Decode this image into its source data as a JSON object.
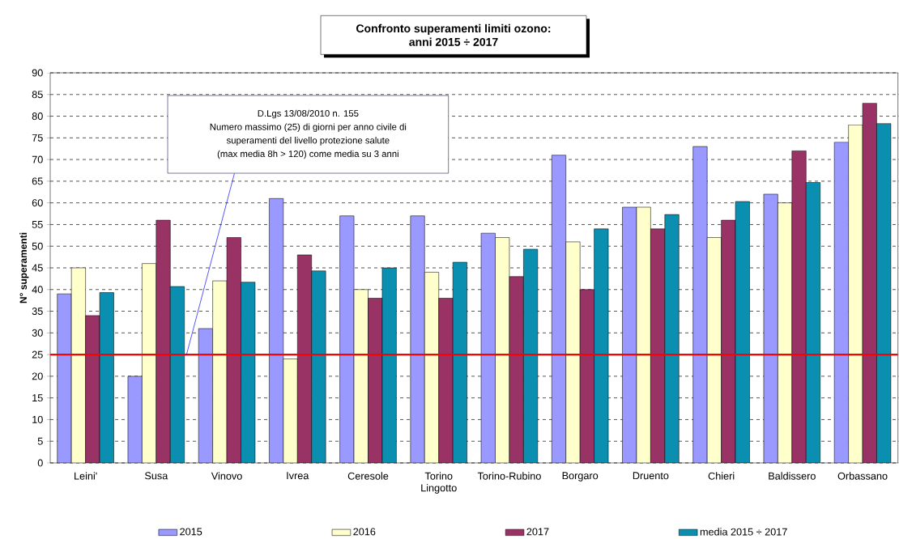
{
  "chart_data": {
    "type": "bar",
    "title": "Confronto superamenti limiti ozono:",
    "subtitle": "anni 2015 ÷ 2017",
    "ylabel": "N° superamenti",
    "categories": [
      "Leini'",
      "Susa",
      "Vinovo",
      "Ivrea",
      "Ceresole",
      "Torino Lingotto",
      "Torino-Rubino",
      "Borgaro",
      "Druento",
      "Chieri",
      "Baldissero",
      "Orbassano"
    ],
    "series": [
      {
        "name": "2015",
        "color": "#9999ff",
        "values": [
          39,
          20,
          31,
          61,
          57,
          57,
          53,
          71,
          59,
          73,
          62,
          74
        ]
      },
      {
        "name": "2016",
        "color": "#ffffcc",
        "values": [
          45,
          46,
          42,
          24,
          40,
          44,
          52,
          51,
          59,
          52,
          60,
          78
        ]
      },
      {
        "name": "2017",
        "color": "#993366",
        "values": [
          34,
          56,
          52,
          48,
          38,
          38,
          43,
          40,
          54,
          56,
          72,
          83
        ]
      },
      {
        "name": "media  2015 ÷ 2017",
        "color": "#0a8fb0",
        "values": [
          39.3,
          40.7,
          41.7,
          44.3,
          45,
          46.3,
          49.3,
          54,
          57.3,
          60.3,
          64.7,
          78.3
        ]
      }
    ],
    "ylim": [
      0,
      90
    ],
    "yticks": [
      0,
      5,
      10,
      15,
      20,
      25,
      30,
      35,
      40,
      45,
      50,
      55,
      60,
      65,
      70,
      75,
      80,
      85,
      90
    ],
    "grid": "y",
    "legend": "bottom",
    "ref_lines": [
      {
        "axis": "y",
        "value": 25,
        "color": "#ff0000"
      }
    ],
    "annotations": [
      "D.Lgs 13/08/2010 n. 155",
      "Numero massimo (25) di giorni per anno civile di",
      "superamenti del livello protezione salute",
      "(max media 8h > 120)  come media su 3 anni"
    ]
  }
}
